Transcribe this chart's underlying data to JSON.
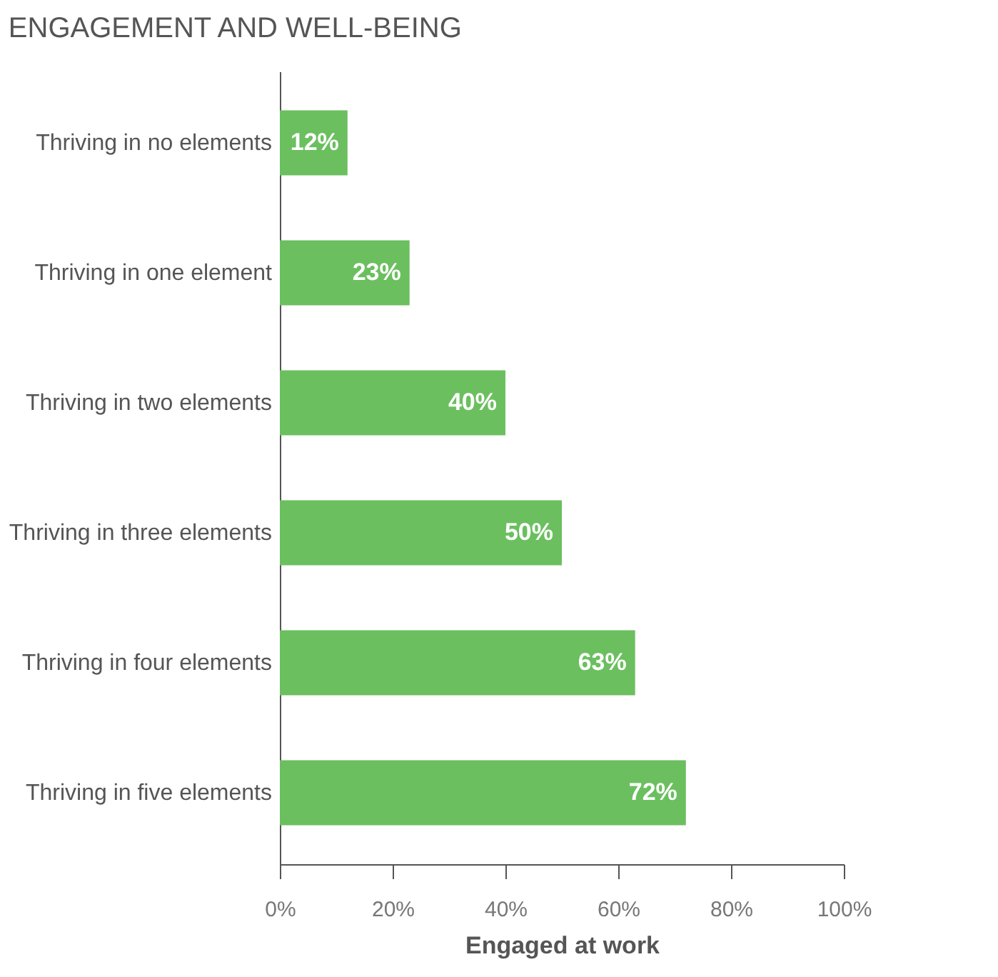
{
  "chart_data": {
    "type": "bar",
    "orientation": "horizontal",
    "title": "ENGAGEMENT AND WELL-BEING",
    "xlabel": "Engaged at work",
    "categories": [
      "Thriving in no elements",
      "Thriving in one element",
      "Thriving in two elements",
      "Thriving in three elements",
      "Thriving in four elements",
      "Thriving in five elements"
    ],
    "values": [
      12,
      23,
      40,
      50,
      63,
      72
    ],
    "value_labels": [
      "12%",
      "23%",
      "40%",
      "50%",
      "63%",
      "72%"
    ],
    "color": "#6bbf5f",
    "xlim": [
      0,
      100
    ],
    "xticks": [
      {
        "value": 0,
        "label": "0%"
      },
      {
        "value": 20,
        "label": "20%"
      },
      {
        "value": 40,
        "label": "40%"
      },
      {
        "value": 60,
        "label": "60%"
      },
      {
        "value": 80,
        "label": "80%"
      },
      {
        "value": 100,
        "label": "100%"
      }
    ],
    "grid": false
  }
}
